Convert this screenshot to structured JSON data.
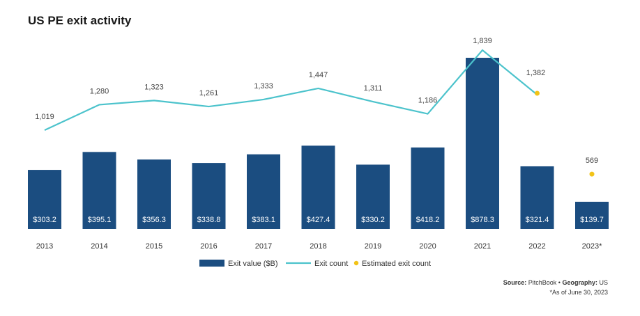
{
  "chart_data": {
    "type": "bar",
    "title": "US PE exit activity",
    "categories": [
      "2013",
      "2014",
      "2015",
      "2016",
      "2017",
      "2018",
      "2019",
      "2020",
      "2021",
      "2022",
      "2023*"
    ],
    "series": [
      {
        "name": "Exit value ($B)",
        "type": "bar",
        "color": "#1b4d80",
        "values": [
          303.2,
          395.1,
          356.3,
          338.8,
          383.1,
          427.4,
          330.2,
          418.2,
          878.3,
          321.4,
          139.7
        ],
        "labels": [
          "$303.2",
          "$395.1",
          "$356.3",
          "$338.8",
          "$383.1",
          "$427.4",
          "$330.2",
          "$418.2",
          "$878.3",
          "$321.4",
          "$139.7"
        ]
      },
      {
        "name": "Exit count",
        "type": "line",
        "color": "#4cc3cc",
        "values": [
          1019,
          1280,
          1323,
          1261,
          1333,
          1447,
          1311,
          1186,
          1839,
          1382,
          null
        ],
        "labels": [
          "1,019",
          "1,280",
          "1,323",
          "1,261",
          "1,333",
          "1,447",
          "1,311",
          "1,186",
          "1,839",
          "1,382",
          ""
        ]
      },
      {
        "name": "Estimated exit count",
        "type": "scatter",
        "color": "#f2c318",
        "values": [
          null,
          null,
          null,
          null,
          null,
          null,
          null,
          null,
          null,
          1382,
          569
        ],
        "labels": [
          "",
          "",
          "",
          "",
          "",
          "",
          "",
          "",
          "",
          "",
          "569"
        ]
      }
    ],
    "legend_position": "bottom-center",
    "grid": false
  },
  "source": {
    "label": "Source:",
    "name": "PitchBook",
    "separator": "•",
    "geo_label": "Geography:",
    "geo_value": "US",
    "note": "*As of June 30, 2023"
  }
}
